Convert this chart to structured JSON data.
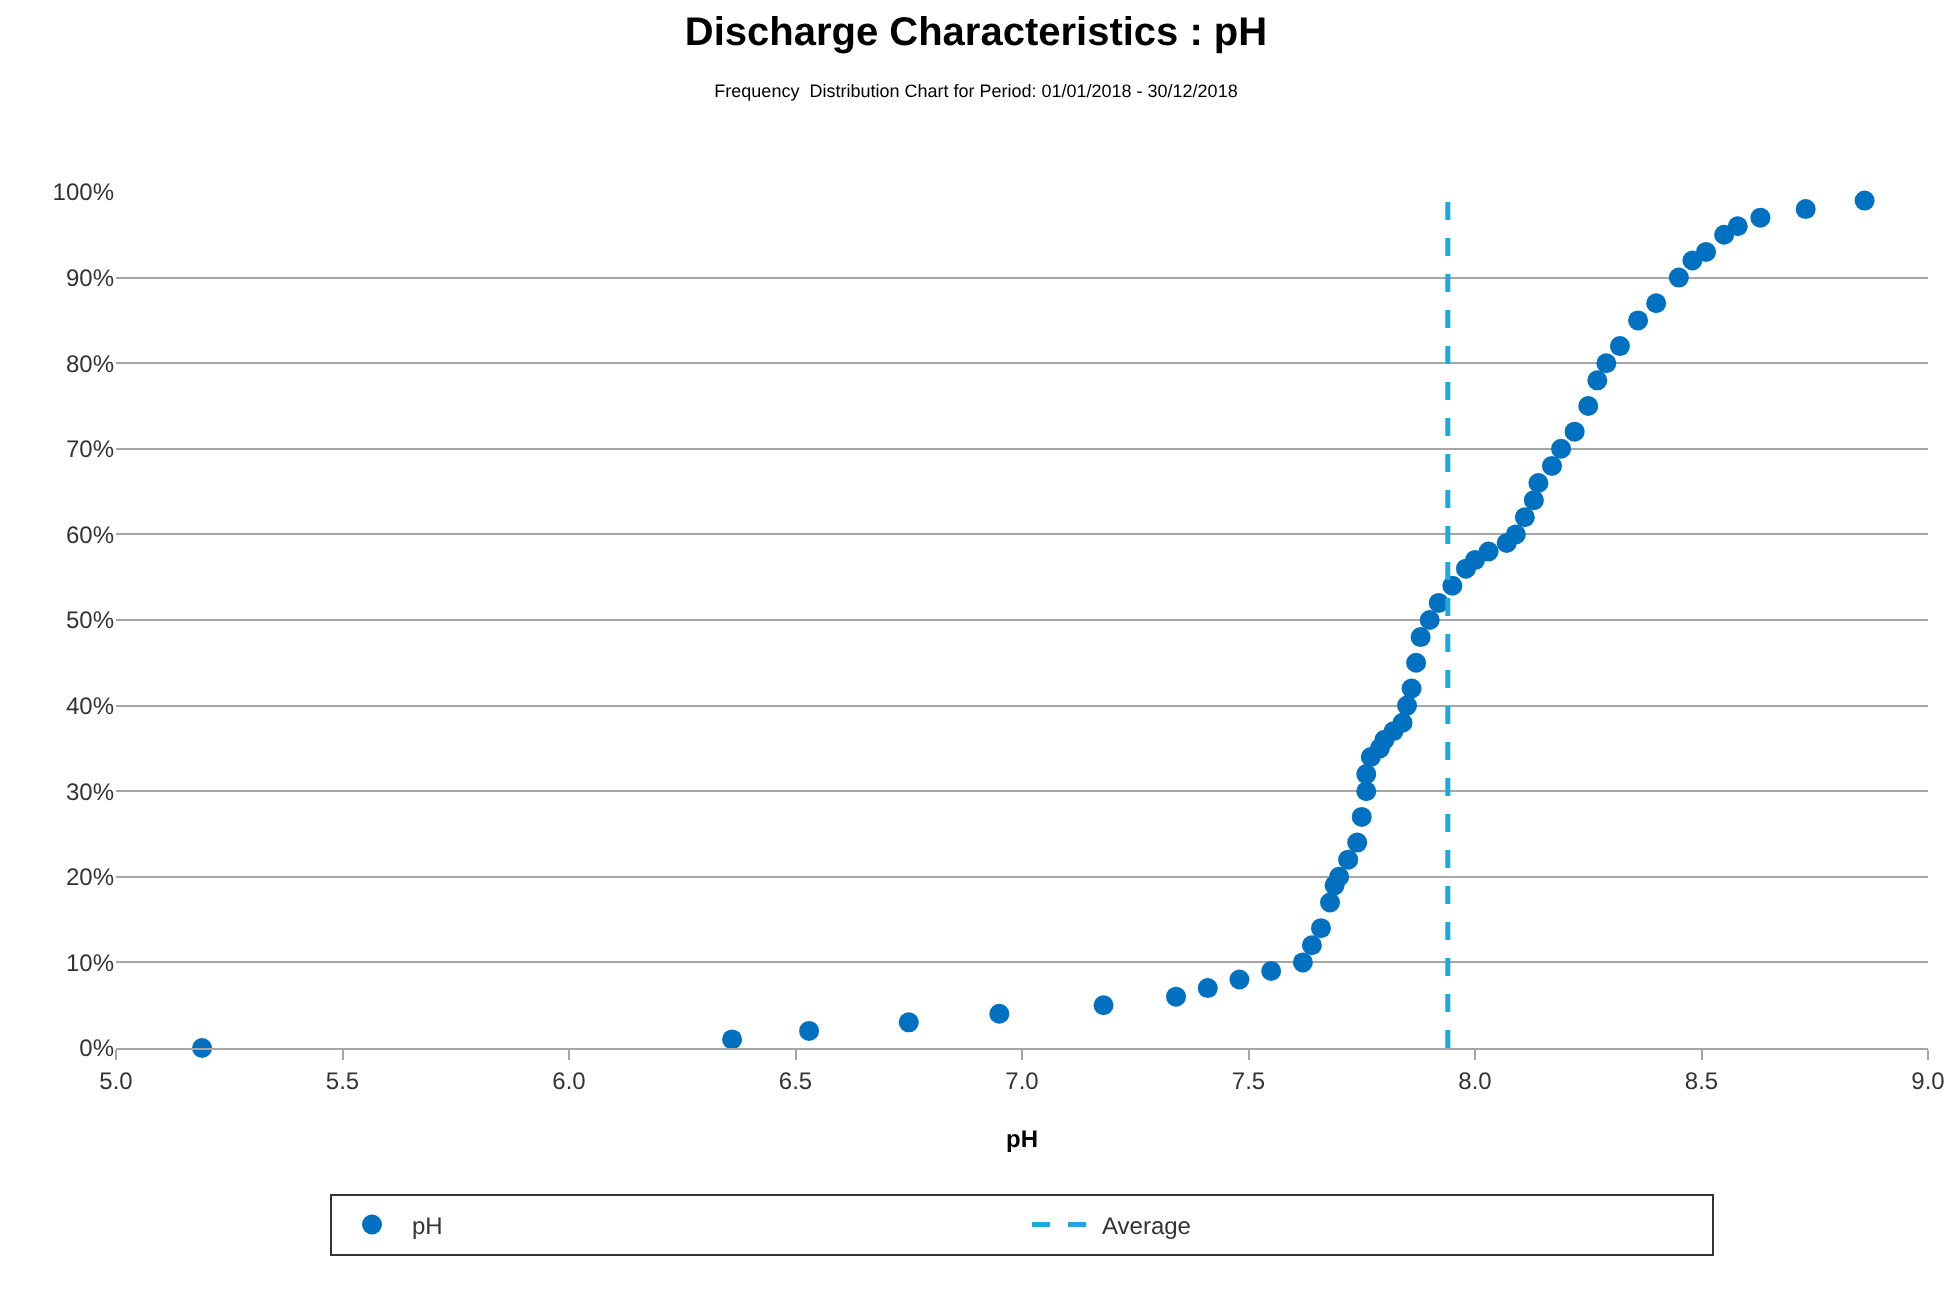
{
  "chart_data": {
    "type": "scatter",
    "title": "Discharge Characteristics : pH",
    "subtitle": "Frequency  Distribution Chart for Period: 01/01/2018 - 30/12/2018",
    "xlabel": "pH",
    "series": [
      {
        "name": "pH",
        "color": "#0070c0",
        "x": [
          5.19,
          6.36,
          6.53,
          6.75,
          6.95,
          7.18,
          7.34,
          7.41,
          7.48,
          7.55,
          7.62,
          7.64,
          7.66,
          7.68,
          7.69,
          7.7,
          7.72,
          7.74,
          7.75,
          7.76,
          7.76,
          7.77,
          7.79,
          7.8,
          7.82,
          7.84,
          7.85,
          7.86,
          7.87,
          7.88,
          7.9,
          7.92,
          7.95,
          7.98,
          8.0,
          8.03,
          8.07,
          8.09,
          8.11,
          8.13,
          8.14,
          8.17,
          8.19,
          8.22,
          8.25,
          8.27,
          8.29,
          8.32,
          8.36,
          8.4,
          8.45,
          8.48,
          8.51,
          8.55,
          8.58,
          8.63,
          8.73,
          8.86
        ],
        "values": [
          0,
          1,
          2,
          3,
          4,
          5,
          6,
          7,
          8,
          9,
          10,
          12,
          14,
          17,
          19,
          20,
          22,
          24,
          27,
          30,
          32,
          34,
          35,
          36,
          37,
          38,
          40,
          42,
          45,
          48,
          50,
          52,
          54,
          56,
          57,
          58,
          59,
          60,
          62,
          64,
          66,
          68,
          70,
          72,
          75,
          78,
          80,
          82,
          85,
          87,
          90,
          92,
          93,
          95,
          96,
          97,
          98,
          99
        ]
      }
    ],
    "ref_lines": [
      {
        "axis": "x",
        "value": 7.94,
        "label": "Average",
        "color": "#1fa8e0",
        "line_style": "dashed"
      }
    ],
    "xlim": [
      5,
      9
    ],
    "xticks": [
      {
        "value": 5,
        "label": "5.0"
      },
      5.5,
      {
        "value": 6,
        "label": "6.0"
      },
      6.5,
      {
        "value": 7,
        "label": "7.0"
      },
      7.5,
      {
        "value": 8,
        "label": "8.0"
      },
      8.5,
      {
        "value": 9,
        "label": "9.0"
      }
    ],
    "ylim": [
      0,
      100
    ],
    "yticks": [
      {
        "value": 0,
        "label": "0%"
      },
      {
        "value": 10,
        "label": "10%"
      },
      {
        "value": 20,
        "label": "20%"
      },
      {
        "value": 30,
        "label": "30%"
      },
      {
        "value": 40,
        "label": "40%"
      },
      {
        "value": 50,
        "label": "50%"
      },
      {
        "value": 60,
        "label": "60%"
      },
      {
        "value": 70,
        "label": "70%"
      },
      {
        "value": 80,
        "label": "80%"
      },
      {
        "value": 90,
        "label": "90%"
      },
      {
        "value": 100,
        "label": "100%"
      }
    ],
    "grid": "y",
    "legend": "bottom",
    "marker": "circle"
  }
}
